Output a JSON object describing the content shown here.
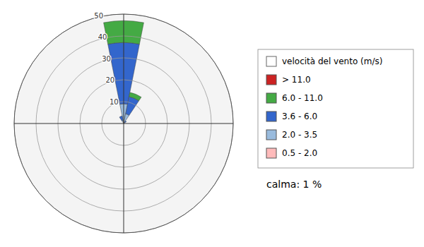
{
  "chart_data": {
    "type": "windrose",
    "legend_title": "velocità del vento (m/s)",
    "annotations": [
      {
        "text": "calma: 1 %"
      }
    ],
    "x": [
      0,
      22.5,
      45,
      67.5,
      90,
      112.5,
      135,
      157.5,
      180,
      202.5,
      225,
      247.5,
      270,
      292.5,
      315,
      337.5
    ],
    "series": [
      {
        "name": "0.5 - 2.0",
        "color": "#ffbbbb",
        "values": [
          1.0,
          0.5,
          0.0,
          0.0,
          0.0,
          0.0,
          0.0,
          0.0,
          0.0,
          0.0,
          0.0,
          0.0,
          0.0,
          0.0,
          0.0,
          0.5
        ]
      },
      {
        "name": "2.0 - 3.5",
        "color": "#99bbdd",
        "values": [
          8.0,
          4.0,
          0.5,
          0.0,
          0.0,
          0.0,
          0.0,
          0.0,
          0.0,
          0.0,
          0.0,
          0.0,
          0.0,
          0.0,
          0.0,
          1.0
        ]
      },
      {
        "name": "3.6 - 6.0",
        "color": "#3366cc",
        "values": [
          28.0,
          8.0,
          1.0,
          0.0,
          0.0,
          0.0,
          0.0,
          0.0,
          0.0,
          0.0,
          0.0,
          0.0,
          0.0,
          0.0,
          0.0,
          2.0
        ]
      },
      {
        "name": "6.0 - 11.0",
        "color": "#44aa44",
        "values": [
          10.0,
          2.0,
          0.0,
          0.0,
          0.0,
          0.0,
          0.0,
          0.0,
          0.0,
          0.0,
          0.0,
          0.0,
          0.0,
          0.0,
          0.0,
          0.0
        ]
      },
      {
        "name": "> 11.0",
        "color": "#cc2222",
        "values": [
          0.0,
          0.0,
          0.0,
          0.0,
          0.0,
          0.0,
          0.0,
          0.0,
          0.0,
          0.0,
          0.0,
          0.0,
          0.0,
          0.0,
          0.0,
          0.0
        ]
      }
    ],
    "ylim": [
      0,
      50
    ],
    "yticks": [
      10,
      20,
      30,
      40,
      50
    ],
    "grid": true,
    "stacked": true,
    "legend": "right",
    "tick_labels": "y"
  }
}
